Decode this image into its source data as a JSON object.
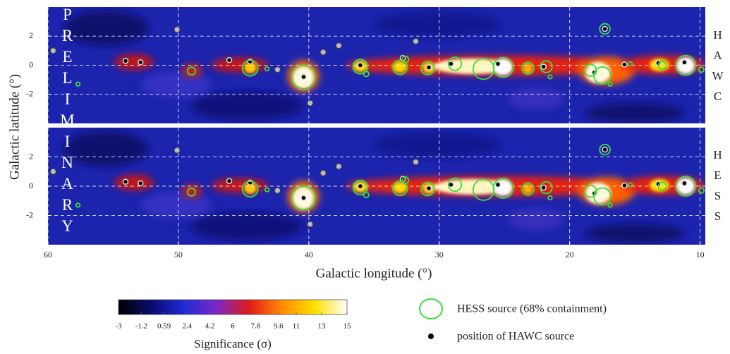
{
  "chart_data": {
    "type": "skymap",
    "xlabel": "Galactic longitude (°)",
    "ylabel": "Galactic latitude (°)",
    "watermark": "PRELIMINARY",
    "xlim": [
      60,
      9.6
    ],
    "xticks": [
      60,
      50,
      40,
      30,
      20,
      10
    ],
    "grid": true,
    "panels": [
      {
        "label": "HAWC",
        "ylim": [
          -4,
          4
        ],
        "yticks": [
          2,
          0,
          -2
        ]
      },
      {
        "label": "HESS",
        "ylim": [
          -4,
          4
        ],
        "yticks": [
          2,
          0,
          -2
        ]
      }
    ],
    "hess_sources": {
      "name": "HESS source (68% containment)",
      "color": "#3ddc3d",
      "x": [
        44.5,
        49,
        57.7,
        43.2,
        40.4,
        36.05,
        35.6,
        33.0,
        32.6,
        30.9,
        28.8,
        26.6,
        25.1,
        23.2,
        21.8,
        21.5,
        18.4,
        17.5,
        17.3,
        16.9,
        15.35,
        12.9,
        11.1,
        9.9
      ],
      "y": [
        -0.2,
        -0.4,
        -1.3,
        -0.25,
        -0.8,
        -0.1,
        -0.6,
        -0.15,
        0.4,
        -0.2,
        0.1,
        -0.25,
        -0.15,
        -0.2,
        -0.1,
        -0.8,
        -0.35,
        -0.7,
        2.5,
        -1.3,
        0.1,
        0,
        0,
        -0.3
      ],
      "r": [
        0.6,
        0.3,
        0.15,
        0.15,
        0.9,
        0.55,
        0.2,
        0.55,
        0.25,
        0.5,
        0.5,
        0.8,
        0.75,
        0.45,
        0.45,
        0.15,
        0.45,
        0.65,
        0.4,
        0.15,
        0.15,
        0.3,
        0.75,
        0.2
      ]
    },
    "hawc_sources": {
      "name": "position of HAWC source",
      "color": "#000000",
      "x": [
        54.05,
        52.9,
        46.1,
        44.5,
        40.4,
        36.05,
        32.8,
        30.8,
        29.1,
        25.5,
        22.0,
        18.1,
        17.3,
        15.8,
        13.2,
        11.2
      ],
      "y": [
        0.3,
        0.2,
        0.35,
        0.25,
        -0.8,
        0,
        0.5,
        -0.15,
        0.1,
        0.1,
        -0.1,
        -0.5,
        2.5,
        0.05,
        0.15,
        0.2
      ]
    },
    "other_sources": {
      "color": "#bbbbbb",
      "x": [
        59.6,
        50.1,
        38.9,
        37.7,
        39.9,
        31.8,
        42.4
      ],
      "y": [
        1.0,
        2.45,
        0.9,
        1.35,
        -2.6,
        1.65,
        -0.3
      ]
    },
    "colorbar": {
      "label": "Significance (σ)",
      "lim": [
        -3,
        15
      ],
      "ticks": [
        -3,
        -1.2,
        0.59,
        2.4,
        4.2,
        6,
        7.8,
        9.6,
        11,
        13,
        15
      ],
      "colors": [
        "#000000",
        "#0a0a6e",
        "#1e2ad2",
        "#7a28c8",
        "#e01a1a",
        "#ff8a00",
        "#ffe000",
        "#ffffff"
      ]
    }
  }
}
